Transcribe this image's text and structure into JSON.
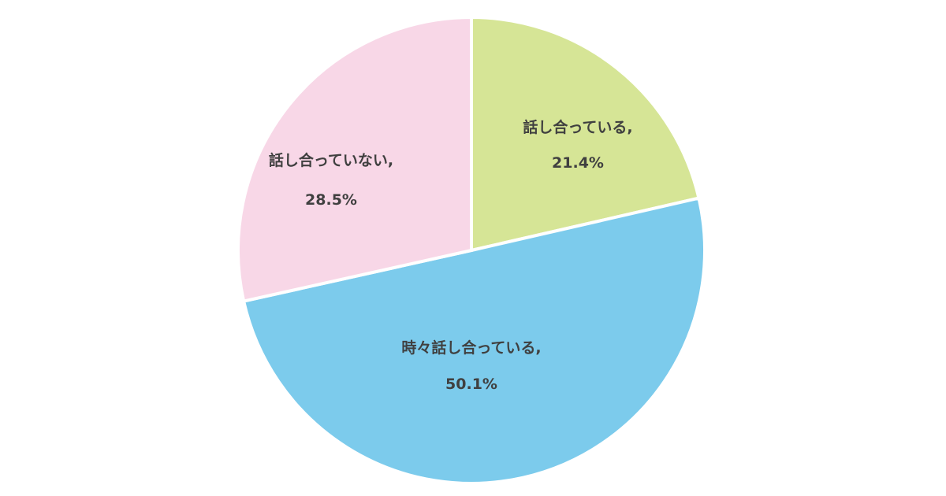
{
  "chart_data": {
    "type": "pie",
    "start": "12 o'clock",
    "direction": "clockwise",
    "slices": [
      {
        "label": "話し合っている,",
        "value": 21.4,
        "value_label": "21.4%",
        "color": "#d6e596"
      },
      {
        "label": "時々話し合っている,",
        "value": 50.1,
        "value_label": "50.1%",
        "color": "#7ccbec"
      },
      {
        "label": "話し合っていない,",
        "value": 28.5,
        "value_label": "28.5%",
        "color": "#f8d7e7"
      }
    ],
    "legend": "none"
  }
}
